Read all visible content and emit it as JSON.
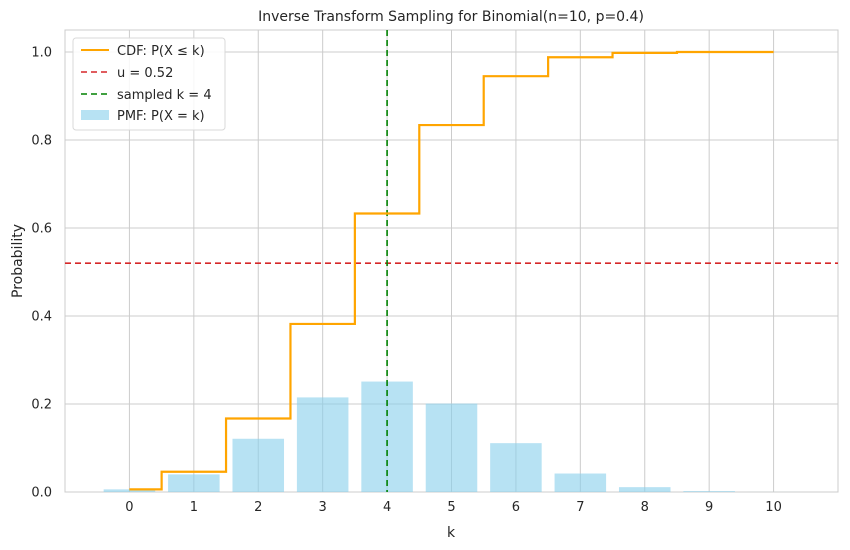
{
  "chart_data": {
    "type": "bar+step",
    "title": "Inverse Transform Sampling for Binomial(n=10, p=0.4)",
    "xlabel": "k",
    "ylabel": "Probability",
    "xlim": [
      -1,
      11
    ],
    "ylim": [
      0,
      1.05
    ],
    "x_ticks": [
      0,
      1,
      2,
      3,
      4,
      5,
      6,
      7,
      8,
      9,
      10
    ],
    "y_ticks": [
      0.0,
      0.2,
      0.4,
      0.6,
      0.8,
      1.0
    ],
    "y_tick_labels": [
      "0.0",
      "0.2",
      "0.4",
      "0.6",
      "0.8",
      "1.0"
    ],
    "grid": true,
    "legend_position": "top-left",
    "categories": [
      0,
      1,
      2,
      3,
      4,
      5,
      6,
      7,
      8,
      9,
      10
    ],
    "series": [
      {
        "name": "PMF: P(X = k)",
        "type": "bar",
        "color": "#87ceeb",
        "values": [
          0.006,
          0.04,
          0.121,
          0.215,
          0.251,
          0.201,
          0.111,
          0.042,
          0.011,
          0.002,
          0.0001
        ]
      },
      {
        "name": "CDF: P(X ≤ k)",
        "type": "step",
        "color": "#ffa500",
        "values": [
          0.006,
          0.046,
          0.167,
          0.382,
          0.633,
          0.834,
          0.945,
          0.988,
          0.998,
          1.0,
          1.0
        ]
      }
    ],
    "reference_lines": [
      {
        "name": "u = 0.52",
        "orientation": "horizontal",
        "value": 0.52,
        "color": "#d62728"
      },
      {
        "name": "sampled k = 4",
        "orientation": "vertical",
        "value": 4,
        "color": "#008000"
      }
    ]
  }
}
